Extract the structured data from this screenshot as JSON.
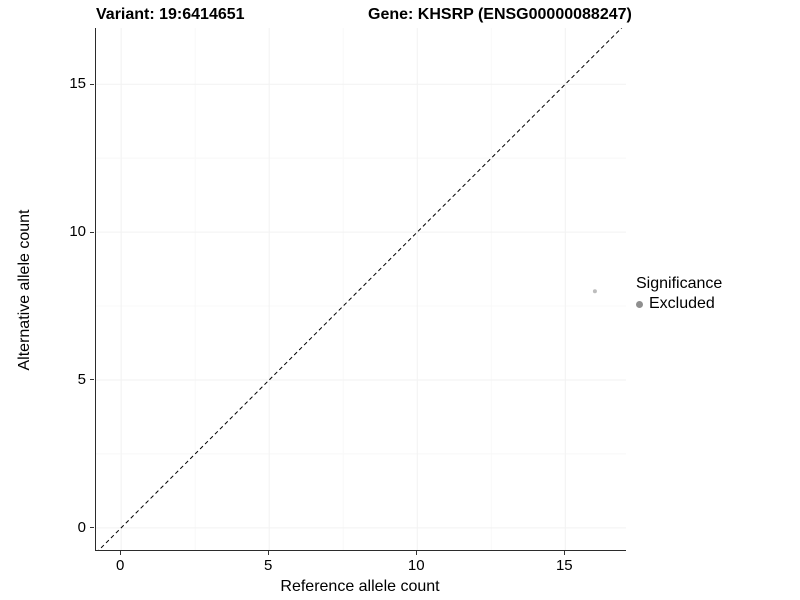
{
  "chart_data": {
    "type": "scatter",
    "title_left": "Variant: 19:6414651",
    "title_right": "Gene: KHSRP (ENSG00000088247)",
    "xlabel": "Reference allele count",
    "ylabel": "Alternative allele count",
    "xlim": [
      -0.85,
      17.05
    ],
    "ylim": [
      -0.75,
      16.9
    ],
    "x_ticks": [
      0,
      5,
      10,
      15
    ],
    "y_ticks": [
      0,
      5,
      10,
      15
    ],
    "x_minor_ticks": [
      2.5,
      7.5,
      12.5
    ],
    "y_minor_ticks": [
      2.5,
      7.5,
      12.5
    ],
    "grid": "very-faint",
    "diagonal": {
      "style": "dashed",
      "slope": 1,
      "intercept": 0,
      "color": "#000000"
    },
    "points": [
      {
        "x": 16,
        "y": 8,
        "series": "Excluded",
        "color": "#bdbdbd",
        "radius": 2
      }
    ],
    "legend": {
      "title": "Significance",
      "position": "right",
      "items": [
        {
          "label": "Excluded",
          "color": "#8f8f8f"
        }
      ]
    },
    "colors": {
      "axis_line": "#2b2b2b",
      "major_grid": "#f2f2f2",
      "minor_grid": "#f8f8f8",
      "tick_text": "#000000"
    }
  }
}
